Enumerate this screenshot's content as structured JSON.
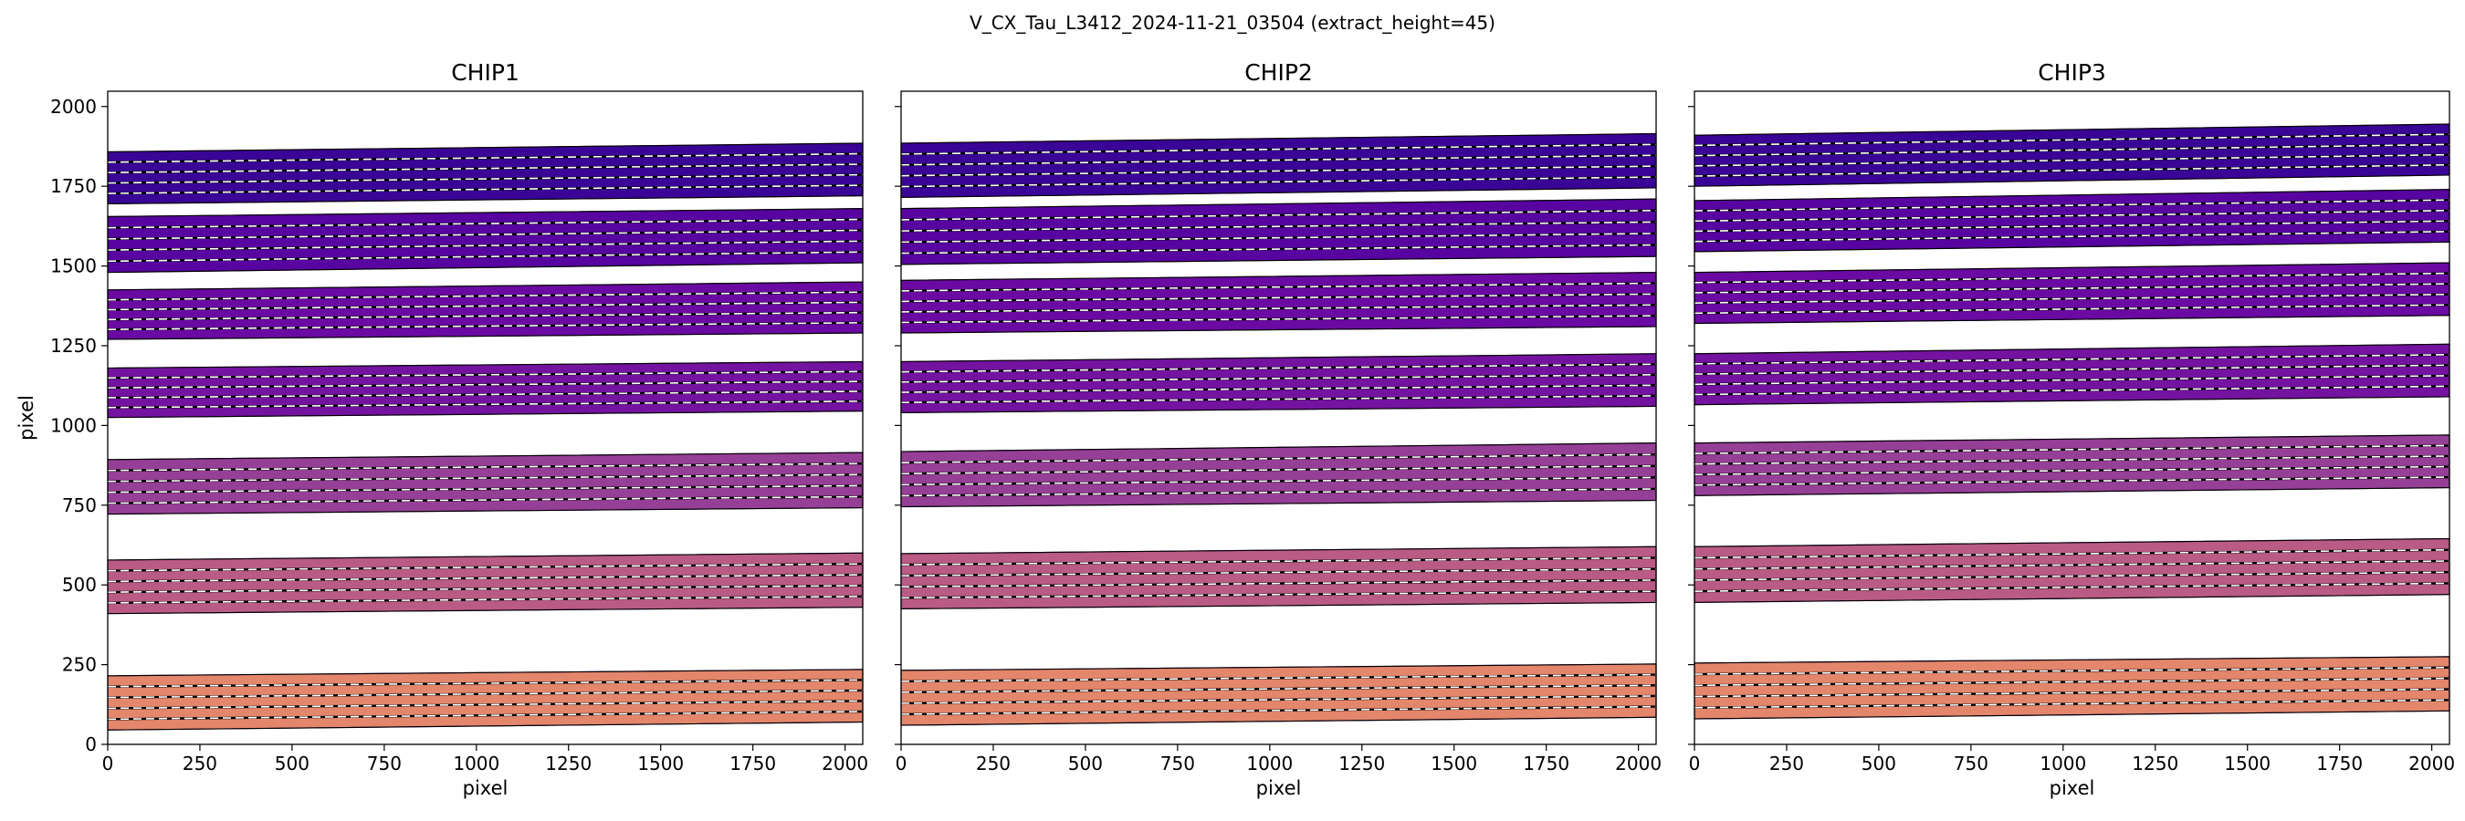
{
  "figure": {
    "suptitle": "V_CX_Tau_L3412_2024-11-21_03504  (extract_height=45)"
  },
  "chart_data": [
    {
      "type": "heatmap",
      "title": "CHIP1",
      "xlabel": "pixel",
      "ylabel": "pixel",
      "xlim": [
        0,
        2048
      ],
      "ylim": [
        0,
        2048
      ],
      "xticks": [
        0,
        250,
        500,
        750,
        1000,
        1250,
        1500,
        1750,
        2000
      ],
      "yticks": [
        0,
        250,
        500,
        750,
        1000,
        1250,
        1500,
        1750,
        2000
      ],
      "show_ytick_labels": true,
      "orders": [
        {
          "bottom_start": 45,
          "bottom_end": 70,
          "top_start": 215,
          "top_end": 235,
          "color": "#e3866b"
        },
        {
          "bottom_start": 410,
          "bottom_end": 430,
          "top_start": 578,
          "top_end": 600,
          "color": "#b95b85"
        },
        {
          "bottom_start": 722,
          "bottom_end": 742,
          "top_start": 893,
          "top_end": 915,
          "color": "#963f96"
        },
        {
          "bottom_start": 1025,
          "bottom_end": 1045,
          "top_start": 1180,
          "top_end": 1200,
          "color": "#7413a0"
        },
        {
          "bottom_start": 1270,
          "bottom_end": 1290,
          "top_start": 1425,
          "top_end": 1450,
          "color": "#6a0aa2"
        },
        {
          "bottom_start": 1480,
          "bottom_end": 1510,
          "top_start": 1655,
          "top_end": 1680,
          "color": "#5704a0"
        },
        {
          "bottom_start": 1695,
          "bottom_end": 1720,
          "top_start": 1858,
          "top_end": 1885,
          "color": "#3a0596"
        }
      ]
    },
    {
      "type": "heatmap",
      "title": "CHIP2",
      "xlabel": "pixel",
      "ylabel": "",
      "xlim": [
        0,
        2048
      ],
      "ylim": [
        0,
        2048
      ],
      "xticks": [
        0,
        250,
        500,
        750,
        1000,
        1250,
        1500,
        1750,
        2000
      ],
      "yticks": [
        0,
        250,
        500,
        750,
        1000,
        1250,
        1500,
        1750,
        2000
      ],
      "show_ytick_labels": false,
      "orders": [
        {
          "bottom_start": 60,
          "bottom_end": 85,
          "top_start": 232,
          "top_end": 252,
          "color": "#e3866b"
        },
        {
          "bottom_start": 425,
          "bottom_end": 445,
          "top_start": 598,
          "top_end": 620,
          "color": "#b95b85"
        },
        {
          "bottom_start": 745,
          "bottom_end": 765,
          "top_start": 918,
          "top_end": 945,
          "color": "#963f96"
        },
        {
          "bottom_start": 1040,
          "bottom_end": 1060,
          "top_start": 1200,
          "top_end": 1225,
          "color": "#7413a0"
        },
        {
          "bottom_start": 1290,
          "bottom_end": 1310,
          "top_start": 1455,
          "top_end": 1480,
          "color": "#6a0aa2"
        },
        {
          "bottom_start": 1505,
          "bottom_end": 1530,
          "top_start": 1680,
          "top_end": 1710,
          "color": "#5704a0"
        },
        {
          "bottom_start": 1715,
          "bottom_end": 1745,
          "top_start": 1885,
          "top_end": 1915,
          "color": "#3a0596"
        }
      ]
    },
    {
      "type": "heatmap",
      "title": "CHIP3",
      "xlabel": "pixel",
      "ylabel": "",
      "xlim": [
        0,
        2048
      ],
      "ylim": [
        0,
        2048
      ],
      "xticks": [
        0,
        250,
        500,
        750,
        1000,
        1250,
        1500,
        1750,
        2000
      ],
      "yticks": [
        0,
        250,
        500,
        750,
        1000,
        1250,
        1500,
        1750,
        2000
      ],
      "show_ytick_labels": false,
      "orders": [
        {
          "bottom_start": 80,
          "bottom_end": 105,
          "top_start": 255,
          "top_end": 275,
          "color": "#e3866b"
        },
        {
          "bottom_start": 445,
          "bottom_end": 470,
          "top_start": 620,
          "top_end": 645,
          "color": "#b95b85"
        },
        {
          "bottom_start": 780,
          "bottom_end": 805,
          "top_start": 945,
          "top_end": 970,
          "color": "#963f96"
        },
        {
          "bottom_start": 1065,
          "bottom_end": 1090,
          "top_start": 1225,
          "top_end": 1255,
          "color": "#7413a0"
        },
        {
          "bottom_start": 1320,
          "bottom_end": 1345,
          "top_start": 1480,
          "top_end": 1510,
          "color": "#6a0aa2"
        },
        {
          "bottom_start": 1545,
          "bottom_end": 1575,
          "top_start": 1705,
          "top_end": 1740,
          "color": "#5704a0"
        },
        {
          "bottom_start": 1750,
          "bottom_end": 1785,
          "top_start": 1910,
          "top_end": 1945,
          "color": "#3a0596"
        }
      ]
    }
  ]
}
